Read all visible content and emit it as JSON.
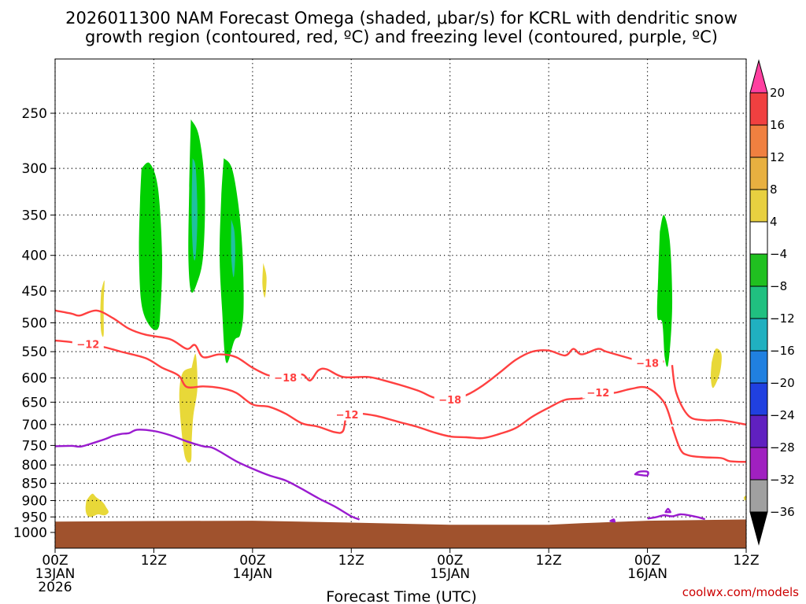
{
  "chart_data": {
    "type": "heatmap",
    "title_lines": [
      "2026011300 NAM Forecast Omega (shaded, μbar/s) for KCRL with dendritic snow",
      "growth region (contoured, red, ºC) and freezing level (contoured, purple, ºC)"
    ],
    "xlabel": "Forecast Time (UTC)",
    "x_range_hours": [
      0,
      84
    ],
    "x_ticks": [
      {
        "hour": 0,
        "lines": [
          "00Z",
          "13JAN",
          "2026"
        ]
      },
      {
        "hour": 12,
        "lines": [
          "12Z"
        ]
      },
      {
        "hour": 24,
        "lines": [
          "00Z",
          "14JAN"
        ]
      },
      {
        "hour": 36,
        "lines": [
          "12Z"
        ]
      },
      {
        "hour": 48,
        "lines": [
          "00Z",
          "15JAN"
        ]
      },
      {
        "hour": 60,
        "lines": [
          "12Z"
        ]
      },
      {
        "hour": 72,
        "lines": [
          "00Z",
          "16JAN"
        ]
      },
      {
        "hour": 84,
        "lines": [
          "12Z"
        ]
      }
    ],
    "y_axis": "pressure (hPa), log scale, inverted",
    "y_ticks": [
      250,
      300,
      350,
      400,
      450,
      500,
      550,
      600,
      650,
      700,
      750,
      800,
      850,
      900,
      950,
      1000
    ],
    "grid": "dotted",
    "colorbar": {
      "labels": [
        "20",
        "16",
        "12",
        "8",
        "4",
        "−4",
        "−8",
        "−12",
        "−16",
        "−20",
        "−24",
        "−28",
        "−32",
        "−36"
      ],
      "colors": [
        "#ff40a0",
        "#f04040",
        "#f08040",
        "#e8b040",
        "#e8d040",
        "#ffffff",
        "#20c020",
        "#20c080",
        "#20b0c0",
        "#2080e0",
        "#2040e0",
        "#6020c0",
        "#a020c0",
        "#a0a0a0",
        "#000000"
      ]
    },
    "omega_regions": [
      {
        "level": "-4 to -8",
        "color": "#00d000",
        "points": [
          [
            10.5,
            300
          ],
          [
            11.5,
            295
          ],
          [
            12.5,
            320
          ],
          [
            13,
            400
          ],
          [
            12.8,
            480
          ],
          [
            12.5,
            510
          ],
          [
            11.5,
            505
          ],
          [
            10.5,
            470
          ],
          [
            10.2,
            400
          ],
          [
            10.3,
            340
          ]
        ]
      },
      {
        "level": "-4 to -8",
        "color": "#00d000",
        "points": [
          [
            16.5,
            255
          ],
          [
            17.5,
            270
          ],
          [
            18.2,
            320
          ],
          [
            18.0,
            400
          ],
          [
            17.2,
            440
          ],
          [
            16.5,
            450
          ],
          [
            16.2,
            400
          ],
          [
            16.3,
            320
          ]
        ]
      },
      {
        "level": "-8 to -12",
        "color": "#20c0a0",
        "points": [
          [
            16.7,
            290
          ],
          [
            17.1,
            300
          ],
          [
            17.3,
            350
          ],
          [
            17.1,
            400
          ],
          [
            16.8,
            400
          ],
          [
            16.6,
            350
          ]
        ]
      },
      {
        "level": "-4 to -8",
        "color": "#00d000",
        "points": [
          [
            20.5,
            290
          ],
          [
            21.5,
            300
          ],
          [
            22.3,
            340
          ],
          [
            22.8,
            400
          ],
          [
            22.9,
            480
          ],
          [
            22.5,
            520
          ],
          [
            21.8,
            530
          ],
          [
            20.8,
            570
          ],
          [
            20.3,
            480
          ],
          [
            20.0,
            400
          ],
          [
            20.2,
            330
          ]
        ]
      },
      {
        "level": "-8 to -12",
        "color": "#20c0a0",
        "points": [
          [
            21.4,
            355
          ],
          [
            21.8,
            370
          ],
          [
            21.9,
            400
          ],
          [
            21.7,
            430
          ],
          [
            21.4,
            400
          ]
        ]
      },
      {
        "level": "-4 to -8",
        "color": "#00d000",
        "points": [
          [
            73.5,
            370
          ],
          [
            74.0,
            350
          ],
          [
            74.7,
            380
          ],
          [
            75.0,
            450
          ],
          [
            74.9,
            510
          ],
          [
            74.5,
            575
          ],
          [
            74.1,
            560
          ],
          [
            73.8,
            500
          ],
          [
            73.2,
            490
          ],
          [
            73.3,
            430
          ]
        ]
      },
      {
        "level": "4 to 8",
        "color": "#e8d838",
        "points": [
          [
            5.6,
            450
          ],
          [
            6.0,
            435
          ],
          [
            5.9,
            470
          ],
          [
            5.9,
            520
          ],
          [
            5.6,
            515
          ],
          [
            5.5,
            480
          ]
        ]
      },
      {
        "level": "4 to 8",
        "color": "#e8d838",
        "points": [
          [
            25.3,
            410
          ],
          [
            25.7,
            430
          ],
          [
            25.5,
            460
          ],
          [
            25.2,
            440
          ]
        ]
      },
      {
        "level": "4 to 8",
        "color": "#e8d838",
        "points": [
          [
            16.6,
            580
          ],
          [
            17.1,
            555
          ],
          [
            17.3,
            620
          ],
          [
            16.8,
            680
          ],
          [
            16.6,
            740
          ],
          [
            16.5,
            790
          ],
          [
            15.8,
            780
          ],
          [
            15.3,
            700
          ],
          [
            15.1,
            630
          ],
          [
            15.5,
            590
          ]
        ]
      },
      {
        "level": "4 to 8",
        "color": "#e8d838",
        "points": [
          [
            3.8,
            900
          ],
          [
            4.5,
            880
          ],
          [
            5.0,
            890
          ],
          [
            5.8,
            905
          ],
          [
            6.2,
            920
          ],
          [
            6.5,
            935
          ],
          [
            6.0,
            945
          ],
          [
            5.2,
            942
          ],
          [
            4.4,
            950
          ],
          [
            3.9,
            945
          ],
          [
            3.7,
            925
          ]
        ]
      },
      {
        "level": "4 to 8",
        "color": "#e8d838",
        "points": [
          [
            79.8,
            570
          ],
          [
            80.3,
            545
          ],
          [
            81.0,
            555
          ],
          [
            80.8,
            590
          ],
          [
            80.0,
            620
          ],
          [
            79.7,
            600
          ]
        ]
      },
      {
        "level": "4 to 8",
        "color": "#e8d838",
        "points": [
          [
            83.7,
            890
          ],
          [
            84.0,
            885
          ],
          [
            84.0,
            895
          ],
          [
            83.8,
            900
          ]
        ]
      }
    ],
    "terrain": {
      "color": "#a0522d",
      "points": [
        [
          0,
          965
        ],
        [
          12,
          963
        ],
        [
          24,
          962
        ],
        [
          36,
          968
        ],
        [
          48,
          975
        ],
        [
          60,
          975
        ],
        [
          64,
          970
        ],
        [
          72,
          962
        ],
        [
          84,
          958
        ]
      ]
    },
    "series": [
      {
        "name": "-18",
        "color": "#ff4040",
        "label_hours": [
          28,
          48,
          72
        ],
        "points": [
          [
            0,
            480
          ],
          [
            2,
            485
          ],
          [
            3,
            488
          ],
          [
            5,
            480
          ],
          [
            7,
            492
          ],
          [
            9,
            510
          ],
          [
            11,
            520
          ],
          [
            14,
            528
          ],
          [
            16,
            545
          ],
          [
            17,
            538
          ],
          [
            18,
            560
          ],
          [
            20,
            555
          ],
          [
            22,
            560
          ],
          [
            24,
            580
          ],
          [
            26,
            595
          ],
          [
            27,
            590
          ],
          [
            28,
            600
          ],
          [
            30,
            593
          ],
          [
            31,
            605
          ],
          [
            32,
            585
          ],
          [
            33,
            583
          ],
          [
            35,
            598
          ],
          [
            38,
            598
          ],
          [
            40,
            605
          ],
          [
            44,
            625
          ],
          [
            46,
            640
          ],
          [
            48,
            645
          ],
          [
            50,
            635
          ],
          [
            52,
            615
          ],
          [
            54,
            590
          ],
          [
            56,
            565
          ],
          [
            58,
            550
          ],
          [
            60,
            548
          ],
          [
            62,
            557
          ],
          [
            63,
            545
          ],
          [
            64,
            555
          ],
          [
            66,
            545
          ],
          [
            67,
            550
          ],
          [
            70,
            563
          ],
          [
            72,
            572
          ],
          [
            74,
            568
          ]
        ]
      },
      {
        "name": "-12",
        "color": "#ff4040",
        "label_hours": [
          4,
          36,
          66
        ],
        "points": [
          [
            0,
            530
          ],
          [
            2,
            533
          ],
          [
            4,
            537
          ],
          [
            6,
            542
          ],
          [
            8,
            550
          ],
          [
            11,
            562
          ],
          [
            13,
            580
          ],
          [
            15,
            595
          ],
          [
            16,
            618
          ],
          [
            18,
            617
          ],
          [
            20,
            620
          ],
          [
            22,
            630
          ],
          [
            24,
            655
          ],
          [
            26,
            660
          ],
          [
            28,
            675
          ],
          [
            30,
            697
          ],
          [
            32,
            705
          ],
          [
            34,
            718
          ],
          [
            35,
            715
          ],
          [
            35.5,
            678
          ],
          [
            37,
            675
          ],
          [
            39,
            680
          ],
          [
            42,
            695
          ],
          [
            44,
            705
          ],
          [
            46,
            718
          ],
          [
            48,
            728
          ],
          [
            50,
            730
          ],
          [
            52,
            732
          ],
          [
            54,
            722
          ],
          [
            56,
            708
          ],
          [
            58,
            682
          ],
          [
            60,
            662
          ],
          [
            62,
            645
          ],
          [
            64,
            642
          ],
          [
            65,
            635
          ],
          [
            66,
            630
          ],
          [
            68,
            630
          ],
          [
            70,
            622
          ],
          [
            72,
            620
          ],
          [
            74,
            650
          ],
          [
            75,
            700
          ]
        ]
      },
      {
        "name": "lower",
        "color": "#ff4040",
        "label_hours": [],
        "points": [
          [
            75,
            575
          ],
          [
            75.5,
            630
          ],
          [
            77,
            680
          ],
          [
            79,
            690
          ],
          [
            81,
            690
          ],
          [
            84,
            700
          ]
        ]
      },
      {
        "name": "lower2",
        "color": "#ff4040",
        "label_hours": [],
        "points": [
          [
            75,
            705
          ],
          [
            76,
            760
          ],
          [
            77,
            775
          ],
          [
            79,
            780
          ],
          [
            81,
            782
          ],
          [
            82,
            790
          ],
          [
            84,
            792
          ]
        ]
      },
      {
        "name": "freezing",
        "color": "#9a1bcf",
        "label_hours": [],
        "points": [
          [
            0,
            752
          ],
          [
            2,
            751
          ],
          [
            3,
            753
          ],
          [
            4,
            748
          ],
          [
            6,
            735
          ],
          [
            7,
            727
          ],
          [
            8,
            722
          ],
          [
            9,
            720
          ],
          [
            10,
            712
          ],
          [
            12,
            715
          ],
          [
            14,
            725
          ],
          [
            16,
            740
          ],
          [
            18,
            752
          ],
          [
            19,
            755
          ],
          [
            20,
            765
          ],
          [
            22,
            790
          ],
          [
            24,
            810
          ],
          [
            26,
            828
          ],
          [
            28,
            842
          ],
          [
            30,
            866
          ],
          [
            32,
            893
          ],
          [
            34,
            918
          ],
          [
            36,
            948
          ],
          [
            37,
            958
          ]
        ]
      },
      {
        "name": "freezing-east",
        "color": "#9a1bcf",
        "label_hours": [],
        "points": [
          [
            72,
            955
          ],
          [
            73,
            951
          ],
          [
            74,
            945
          ],
          [
            75,
            948
          ],
          [
            76,
            942
          ],
          [
            77,
            945
          ],
          [
            78,
            950
          ],
          [
            79,
            957
          ]
        ]
      },
      {
        "name": "freezing-blob",
        "color": "#9a1bcf",
        "label_hours": [],
        "points": [
          [
            70.5,
            825
          ],
          [
            71,
            818
          ],
          [
            72,
            818
          ],
          [
            72,
            828
          ],
          [
            71.5,
            828
          ]
        ]
      },
      {
        "name": "freezing-dot",
        "color": "#9a1bcf",
        "label_hours": [],
        "points": [
          [
            67.5,
            963
          ],
          [
            67.9,
            958
          ],
          [
            68.0,
            965
          ]
        ]
      },
      {
        "name": "freezing-dot2",
        "color": "#9a1bcf",
        "label_hours": [],
        "points": [
          [
            74.2,
            935
          ],
          [
            74.5,
            925
          ],
          [
            74.8,
            935
          ]
        ]
      }
    ]
  },
  "credit": "coolwx.com/models"
}
